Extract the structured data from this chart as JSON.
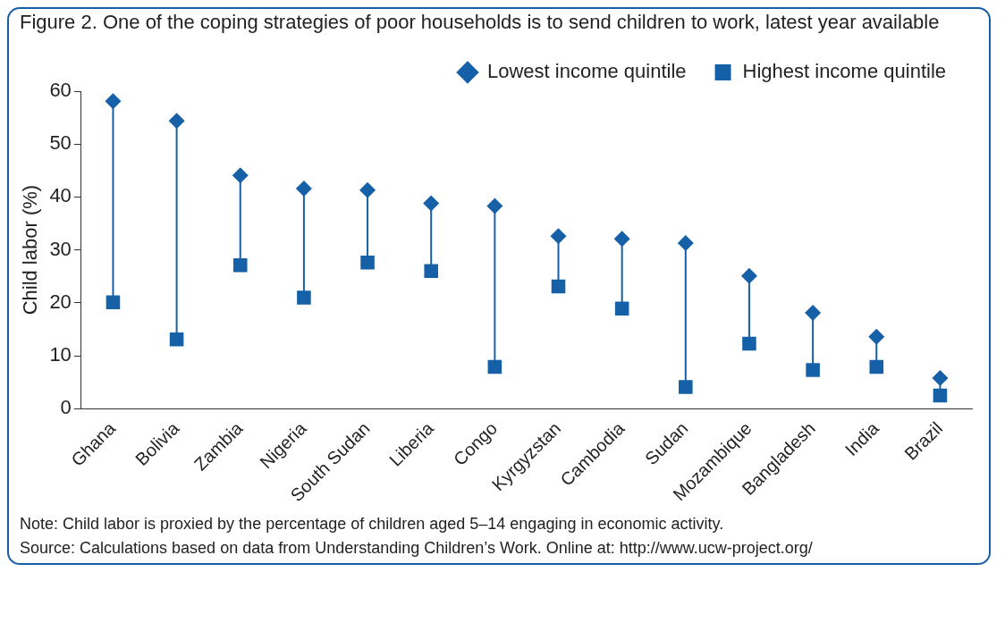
{
  "chart_data": {
    "type": "scatter",
    "title": "Figure 2. One of the coping strategies of poor households is to send children to work, latest year available",
    "ylabel": "Child labor (%)",
    "categories": [
      "Ghana",
      "Bolivia",
      "Zambia",
      "Nigeria",
      "South Sudan",
      "Liberia",
      "Congo",
      "Kyrgyzstan",
      "Cambodia",
      "Sudan",
      "Mozambique",
      "Bangladesh",
      "India",
      "Brazil"
    ],
    "series": [
      {
        "name": "Lowest income quintile",
        "color": "#1660a8",
        "marker": "diamond",
        "values": [
          58.1,
          54.4,
          44.1,
          41.6,
          41.3,
          38.8,
          38.3,
          32.6,
          32.1,
          31.3,
          25.1,
          18.1,
          13.6,
          5.8
        ]
      },
      {
        "name": "Highest income quintile",
        "color": "#1660a8",
        "marker": "square",
        "values": [
          20.1,
          13.1,
          27.1,
          21.0,
          27.6,
          26.0,
          7.9,
          23.1,
          18.9,
          4.1,
          12.3,
          7.3,
          7.9,
          2.5
        ]
      }
    ],
    "ylim": [
      0,
      60
    ],
    "yticks": [
      0,
      10,
      20,
      30,
      40,
      50,
      60
    ],
    "grid": false,
    "legend": "top right",
    "annotations": [
      "Note: Child labor is proxied by the percentage of children aged 5–14 engaging in economic activity.",
      "Source: Calculations based on data from Understanding Children’s Work. Online at: http://www.ucw-project.org/"
    ]
  }
}
